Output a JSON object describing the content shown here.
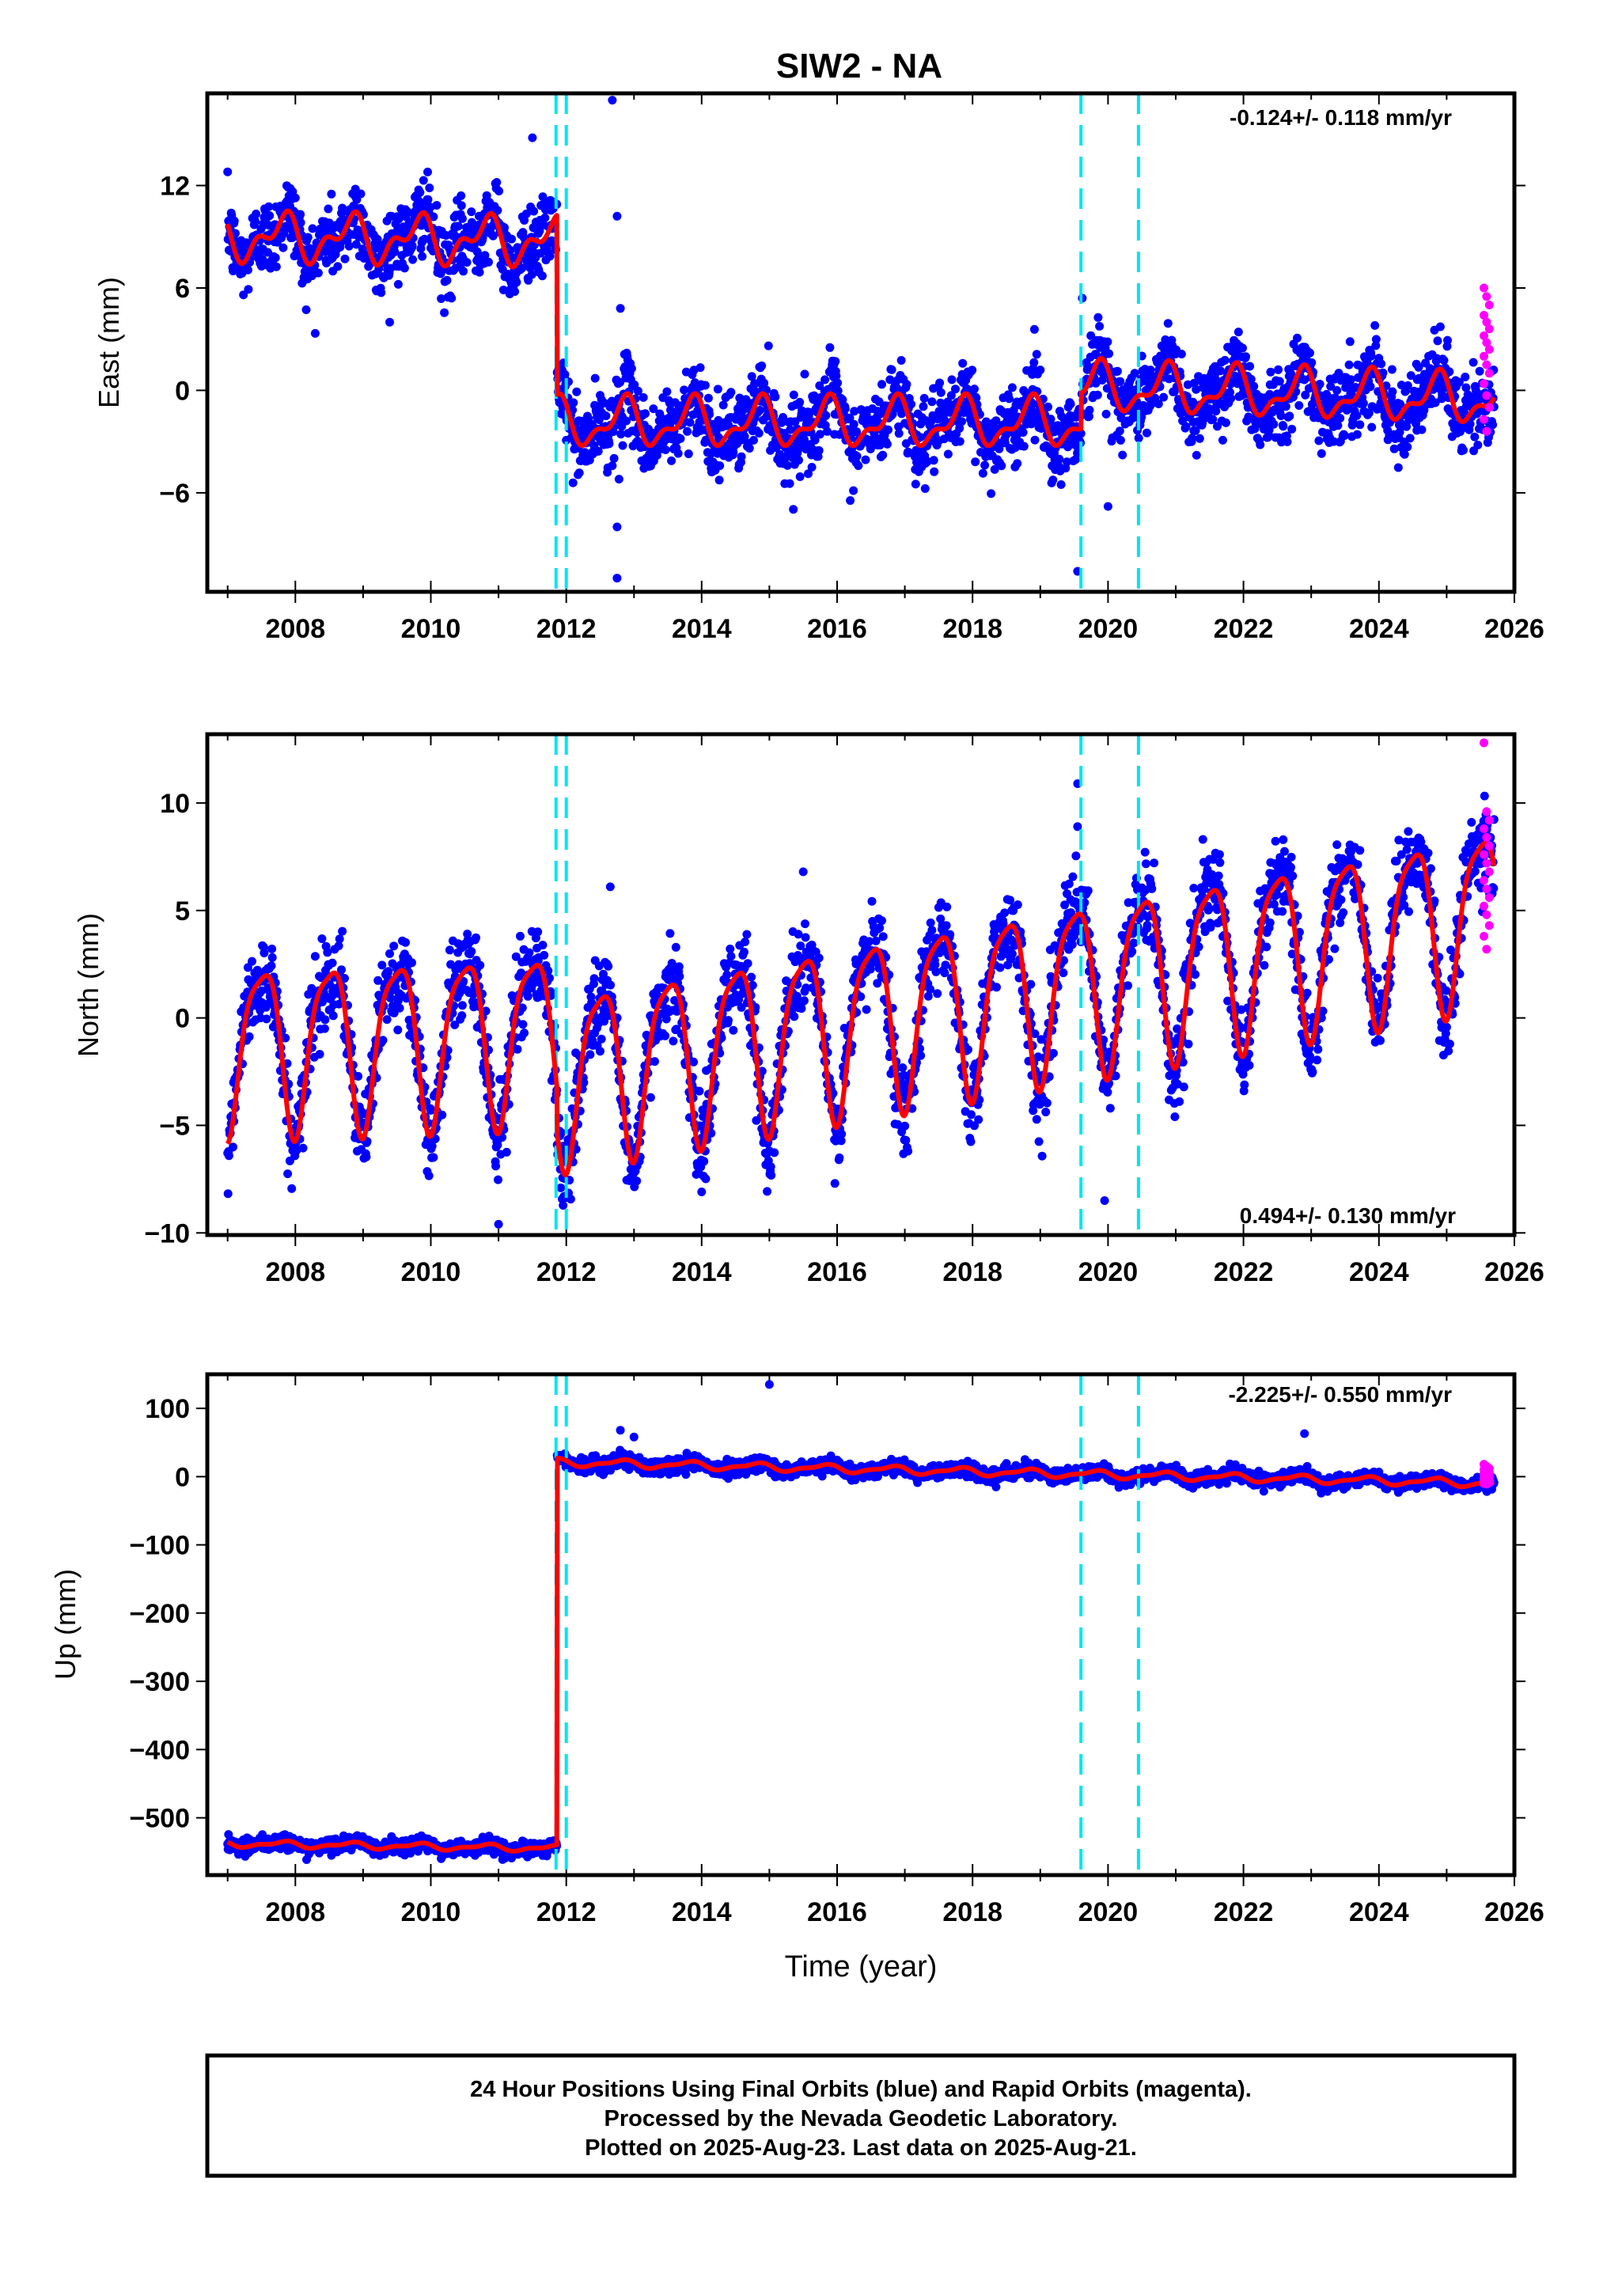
{
  "title": "SIW2 - NA",
  "xlabel": "Time (year)",
  "footer": {
    "line1": "24 Hour Positions Using Final Orbits (blue) and Rapid Orbits (magenta).",
    "line2": "Processed by the Nevada Geodetic Laboratory.",
    "line3": "Plotted on 2025-Aug-23. Last data on 2025-Aug-21."
  },
  "colors": {
    "final": "#0000ff",
    "rapid": "#ff00ff",
    "model": "#ff0000",
    "offset": "#00e5ee",
    "frame": "#000000"
  },
  "chart_data": [
    {
      "type": "scatter",
      "name": "east",
      "ylabel": "East (mm)",
      "rate_label": "-0.124+/- 0.118 mm/yr",
      "rate_position": "top-right",
      "xlim": [
        2006.7,
        2026.0
      ],
      "ylim": [
        -11.8,
        17.4
      ],
      "yticks": [
        -6,
        0,
        6,
        12
      ],
      "ytick_labels": [
        "−6",
        "0",
        "6",
        "12"
      ],
      "xticks": [
        2008,
        2010,
        2012,
        2014,
        2016,
        2018,
        2020,
        2022,
        2024,
        2026
      ],
      "offset_lines": [
        2011.85,
        2012.0,
        2019.6,
        2020.45
      ],
      "model": {
        "segments": [
          {
            "from": 2007.0,
            "to": 2011.86,
            "base": 9.0,
            "slope": -0.05,
            "amp": 1.1,
            "amp2": 0.7,
            "phase": 0.55,
            "phase2": 0.3
          },
          {
            "from": 2011.86,
            "to": 2019.6,
            "base": -1.9,
            "slope": 0.0,
            "amp": 1.2,
            "amp2": 0.6,
            "phase": 0.6,
            "phase2": 0.3
          },
          {
            "from": 2019.6,
            "to": 2025.7,
            "base": 0.2,
            "slope": -0.124,
            "amp": 1.2,
            "amp2": 0.6,
            "phase": 0.6,
            "phase2": 0.3
          }
        ],
        "noise": 1.1
      },
      "rapid": [
        6.0,
        5.5,
        5.0,
        4.4,
        4.0,
        3.6,
        3.2,
        2.8,
        2.4,
        2.0,
        1.5,
        1.0,
        0.4,
        -0.3,
        -1.0,
        -1.7,
        -2.4
      ],
      "outliers": [
        [
          2012.68,
          17.0
        ],
        [
          2012.75,
          10.2
        ],
        [
          2012.8,
          4.8
        ],
        [
          2012.78,
          -5.2
        ],
        [
          2012.75,
          -8.0
        ],
        [
          2012.75,
          -11.0
        ],
        [
          2019.55,
          -10.6
        ],
        [
          2020.0,
          -6.8
        ],
        [
          2019.62,
          5.4
        ],
        [
          2011.5,
          14.8
        ]
      ]
    },
    {
      "type": "scatter",
      "name": "north",
      "ylabel": "North (mm)",
      "rate_label": "0.494+/- 0.130 mm/yr",
      "rate_position": "bottom-right",
      "xlim": [
        2006.7,
        2026.0
      ],
      "ylim": [
        -10.1,
        13.2
      ],
      "yticks": [
        -10,
        -5,
        0,
        5,
        10
      ],
      "ytick_labels": [
        "−10",
        "−5",
        "0",
        "5",
        "10"
      ],
      "xticks": [
        2008,
        2010,
        2012,
        2014,
        2016,
        2018,
        2020,
        2022,
        2024,
        2026
      ],
      "offset_lines": [
        2011.85,
        2012.0,
        2019.6,
        2020.45
      ],
      "model": {
        "segments": [
          {
            "from": 2007.0,
            "to": 2011.86,
            "base": -1.2,
            "slope": 0.12,
            "amp": 3.8,
            "amp2": 0.9,
            "phase": 0.25,
            "phase2": 0.1
          },
          {
            "from": 2011.86,
            "to": 2025.7,
            "base": -2.6,
            "slope": 0.55,
            "amp": 3.9,
            "amp2": 0.9,
            "phase": 0.25,
            "phase2": 0.1
          }
        ],
        "noise": 1.0
      },
      "rapid": [
        12.8,
        9.6,
        9.2,
        8.8,
        8.4,
        8.0,
        7.6,
        7.2,
        6.8,
        6.4,
        6.0,
        5.6,
        5.2,
        4.8,
        4.3,
        3.8,
        3.2
      ],
      "outliers": [
        [
          2011.0,
          -9.6
        ],
        [
          2012.65,
          6.1
        ],
        [
          2019.55,
          10.9
        ],
        [
          2019.55,
          8.9
        ],
        [
          2015.5,
          6.8
        ],
        [
          2019.95,
          -8.5
        ]
      ]
    },
    {
      "type": "scatter",
      "name": "up",
      "ylabel": "Up (mm)",
      "rate_label": "-2.225+/- 0.550 mm/yr",
      "rate_position": "top-right",
      "xlim": [
        2006.7,
        2026.0
      ],
      "ylim": [
        -584,
        150
      ],
      "yticks": [
        -500,
        -400,
        -300,
        -200,
        -100,
        0,
        100
      ],
      "ytick_labels": [
        "−500",
        "−400",
        "−300",
        "−200",
        "−100",
        "0",
        "100"
      ],
      "xticks": [
        2008,
        2010,
        2012,
        2014,
        2016,
        2018,
        2020,
        2022,
        2024,
        2026
      ],
      "offset_lines": [
        2011.85,
        2012.0,
        2019.6,
        2020.45
      ],
      "model": {
        "segments": [
          {
            "from": 2007.0,
            "to": 2011.86,
            "base": -538.0,
            "slope": -1.4,
            "amp": 4.0,
            "amp2": 2.0,
            "phase": 0.55,
            "phase2": 0.3
          },
          {
            "from": 2011.86,
            "to": 2025.7,
            "base": 21.0,
            "slope": -2.225,
            "amp": 5.0,
            "amp2": 2.0,
            "phase": 0.55,
            "phase2": 0.3
          }
        ],
        "noise": 5.0,
        "step_marks": [
          [
            2011.86,
            -538
          ],
          [
            2011.86,
            0
          ],
          [
            2012.0,
            0
          ],
          [
            2012.0,
            21
          ]
        ]
      },
      "rapid": [
        18,
        15,
        12,
        10,
        8,
        6,
        4,
        2,
        0,
        -2,
        -4,
        -6,
        -7,
        -8,
        -9,
        -10,
        -11
      ],
      "outliers": [
        [
          2015.0,
          135
        ],
        [
          2022.9,
          63
        ],
        [
          2012.8,
          68
        ],
        [
          2013.0,
          58
        ]
      ]
    }
  ]
}
